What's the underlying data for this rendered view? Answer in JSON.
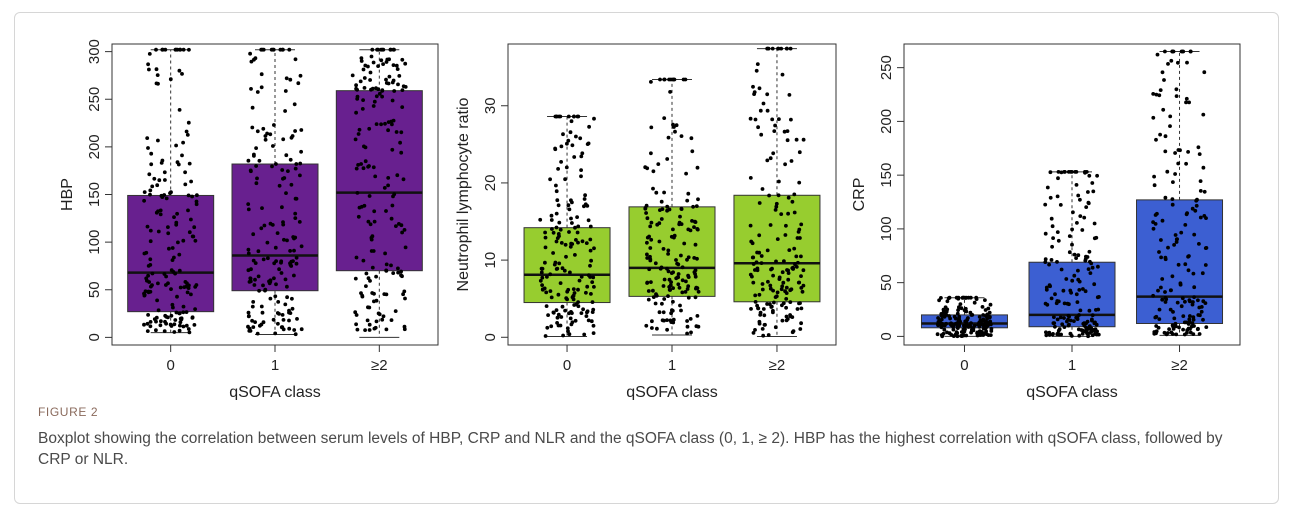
{
  "figure": {
    "label": "FIGURE 2",
    "caption": "Boxplot showing the correlation between serum levels of HBP, CRP and NLR and the qSOFA class (0, 1, ≥ 2). HBP has the highest correlation with qSOFA class, followed by CRP or NLR."
  },
  "chart_data": [
    {
      "type": "box",
      "xlabel": "qSOFA class",
      "ylabel": "HBP",
      "categories": [
        "0",
        "1",
        "≥2"
      ],
      "yticks": [
        0,
        50,
        100,
        150,
        200,
        250,
        300
      ],
      "ylim": [
        -8,
        308
      ],
      "box_color": "#68208f",
      "boxes": [
        {
          "category": "0",
          "whisker_low": 5,
          "q1": 27,
          "median": 68,
          "q3": 149,
          "whisker_high": 302
        },
        {
          "category": "1",
          "whisker_low": 3,
          "q1": 49,
          "median": 86,
          "q3": 182,
          "whisker_high": 302
        },
        {
          "category": "≥2",
          "whisker_low": 0,
          "q1": 70,
          "median": 152,
          "q3": 259,
          "whisker_high": 302
        }
      ]
    },
    {
      "type": "box",
      "xlabel": "qSOFA class",
      "ylabel": "Neutrophil lymphocyte ratio",
      "categories": [
        "0",
        "1",
        "≥2"
      ],
      "yticks": [
        0,
        10,
        20,
        30
      ],
      "ylim": [
        -1,
        38
      ],
      "box_color": "#97cd2f",
      "boxes": [
        {
          "category": "0",
          "whisker_low": 0.1,
          "q1": 4.5,
          "median": 8.1,
          "q3": 14.2,
          "whisker_high": 28.6
        },
        {
          "category": "1",
          "whisker_low": 0.3,
          "q1": 5.3,
          "median": 9.0,
          "q3": 16.9,
          "whisker_high": 33.4
        },
        {
          "category": "≥2",
          "whisker_low": 0.1,
          "q1": 4.6,
          "median": 9.6,
          "q3": 18.4,
          "whisker_high": 37.4
        }
      ]
    },
    {
      "type": "box",
      "xlabel": "qSOFA class",
      "ylabel": "CRP",
      "categories": [
        "0",
        "1",
        "≥2"
      ],
      "yticks": [
        0,
        50,
        100,
        150,
        200,
        250
      ],
      "ylim": [
        -8,
        272
      ],
      "box_color": "#3c5fd2",
      "boxes": [
        {
          "category": "0",
          "whisker_low": 0,
          "q1": 8,
          "median": 12,
          "q3": 20,
          "whisker_high": 36
        },
        {
          "category": "1",
          "whisker_low": 0,
          "q1": 9,
          "median": 20,
          "q3": 69,
          "whisker_high": 153
        },
        {
          "category": "≥2",
          "whisker_low": 1,
          "q1": 12,
          "median": 37,
          "q3": 127,
          "whisker_high": 265
        }
      ]
    }
  ]
}
